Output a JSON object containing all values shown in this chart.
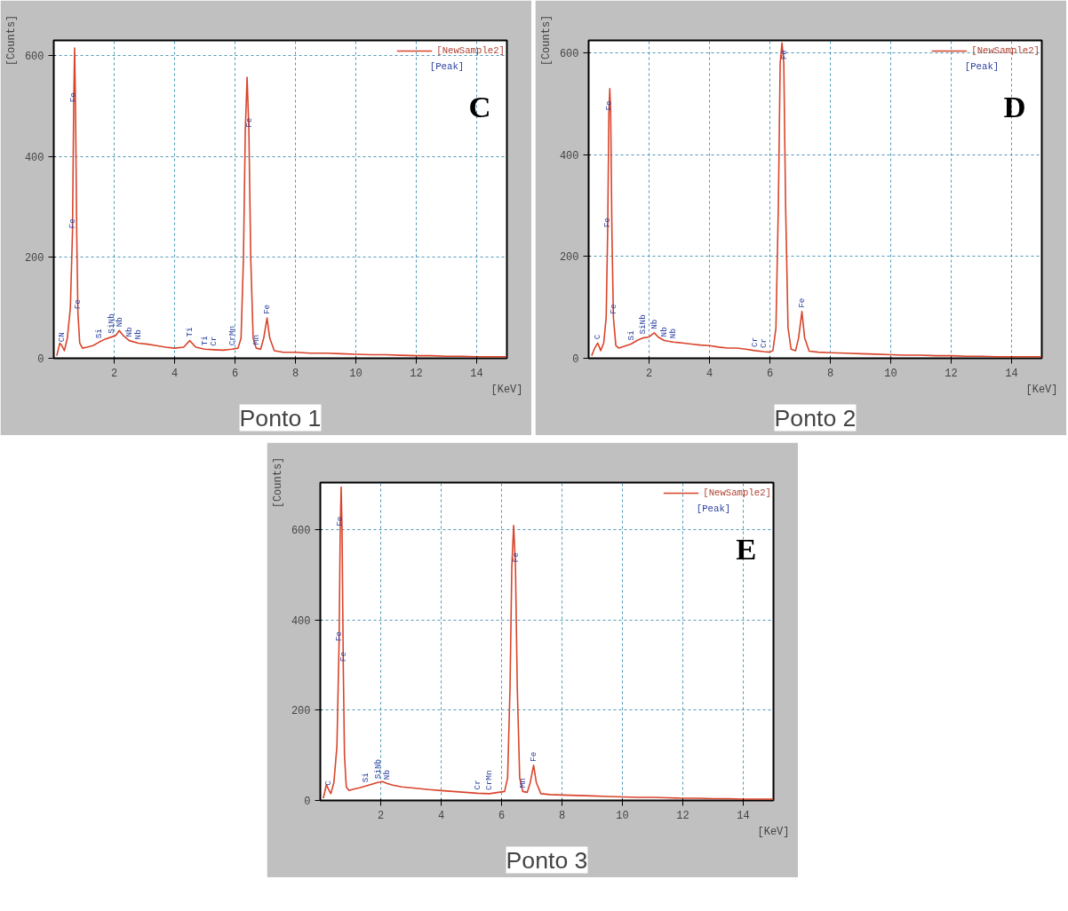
{
  "chart_data": [
    {
      "type": "line",
      "title": "Ponto 1",
      "xlabel": "[KeV]",
      "ylabel": "[Counts]",
      "xlim": [
        0,
        15
      ],
      "ylim": [
        0,
        630
      ],
      "xticks": [
        2,
        4,
        6,
        8,
        10,
        12,
        14
      ],
      "yticks": [
        0,
        200,
        400,
        600
      ],
      "grid": true,
      "legend": "top right",
      "series": [
        {
          "name": "[NewSample2]",
          "color": "#d9442b",
          "x": [
            0.1,
            0.2,
            0.27,
            0.35,
            0.45,
            0.55,
            0.62,
            0.66,
            0.69,
            0.72,
            0.76,
            0.8,
            0.86,
            0.95,
            1.1,
            1.3,
            1.5,
            1.7,
            1.9,
            2.05,
            2.17,
            2.3,
            2.5,
            2.8,
            3.1,
            3.4,
            3.7,
            4.0,
            4.3,
            4.5,
            4.7,
            5.0,
            5.3,
            5.6,
            5.9,
            6.1,
            6.2,
            6.28,
            6.34,
            6.4,
            6.46,
            6.52,
            6.6,
            6.7,
            6.85,
            6.95,
            7.06,
            7.15,
            7.3,
            7.6,
            8.0,
            8.5,
            9.0,
            9.5,
            10.0,
            10.5,
            11.0,
            11.5,
            12.0,
            12.5,
            13.0,
            13.5,
            14.0,
            14.5,
            15.0
          ],
          "values": [
            5,
            30,
            25,
            15,
            40,
            100,
            250,
            500,
            615,
            500,
            250,
            90,
            30,
            20,
            22,
            25,
            32,
            38,
            42,
            45,
            55,
            45,
            35,
            30,
            28,
            25,
            22,
            20,
            22,
            35,
            22,
            18,
            17,
            16,
            18,
            20,
            40,
            200,
            450,
            557,
            450,
            200,
            40,
            20,
            18,
            40,
            80,
            40,
            15,
            12,
            12,
            10,
            10,
            9,
            8,
            7,
            7,
            6,
            5,
            5,
            4,
            4,
            3,
            3,
            3
          ]
        }
      ],
      "annotations": [
        "[Peak]",
        "C",
        {
          "text": "CN",
          "x": 0.27,
          "y": 25
        },
        {
          "text": "Fe",
          "x": 0.66,
          "y": 500
        },
        {
          "text": "Fe",
          "x": 0.62,
          "y": 250
        },
        {
          "text": "Fe",
          "x": 0.8,
          "y": 90
        },
        {
          "text": "Si",
          "x": 1.5,
          "y": 32
        },
        {
          "text": "SiNb",
          "x": 1.9,
          "y": 42
        },
        {
          "text": "Nb",
          "x": 2.17,
          "y": 55
        },
        {
          "text": "Nb",
          "x": 2.5,
          "y": 35
        },
        {
          "text": "Nb",
          "x": 2.8,
          "y": 30
        },
        {
          "text": "Ti",
          "x": 4.5,
          "y": 35
        },
        {
          "text": "Ti",
          "x": 5.0,
          "y": 18
        },
        {
          "text": "Cr",
          "x": 5.3,
          "y": 17
        },
        {
          "text": "CrMn",
          "x": 5.9,
          "y": 18
        },
        {
          "text": "Fe",
          "x": 6.46,
          "y": 450
        },
        {
          "text": "Mn",
          "x": 6.7,
          "y": 20
        },
        {
          "text": "Fe",
          "x": 7.06,
          "y": 80
        }
      ]
    },
    {
      "type": "line",
      "title": "Ponto 2",
      "xlabel": "[KeV]",
      "ylabel": "[Counts]",
      "xlim": [
        0,
        15
      ],
      "ylim": [
        0,
        625
      ],
      "xticks": [
        2,
        4,
        6,
        8,
        10,
        12,
        14
      ],
      "yticks": [
        0,
        200,
        400,
        600
      ],
      "grid": true,
      "legend": "top right",
      "series": [
        {
          "name": "[NewSample2]",
          "color": "#d9442b",
          "x": [
            0.1,
            0.2,
            0.3,
            0.4,
            0.5,
            0.58,
            0.63,
            0.67,
            0.7,
            0.73,
            0.77,
            0.82,
            0.9,
            1.0,
            1.2,
            1.4,
            1.6,
            1.8,
            2.0,
            2.17,
            2.3,
            2.5,
            2.8,
            3.1,
            3.4,
            3.7,
            4.0,
            4.3,
            4.6,
            4.9,
            5.2,
            5.5,
            5.8,
            6.0,
            6.1,
            6.2,
            6.28,
            6.34,
            6.4,
            6.46,
            6.52,
            6.6,
            6.7,
            6.85,
            6.95,
            7.06,
            7.15,
            7.3,
            7.6,
            8.0,
            8.5,
            9.0,
            9.5,
            10.0,
            10.5,
            11.0,
            11.5,
            12.0,
            12.5,
            13.0,
            13.5,
            14.0,
            14.5,
            15.0
          ],
          "values": [
            5,
            20,
            30,
            15,
            30,
            80,
            250,
            480,
            530,
            480,
            250,
            80,
            25,
            20,
            24,
            28,
            35,
            40,
            42,
            50,
            42,
            35,
            32,
            30,
            28,
            26,
            25,
            22,
            20,
            20,
            18,
            15,
            13,
            12,
            15,
            60,
            300,
            580,
            620,
            580,
            300,
            60,
            18,
            15,
            40,
            92,
            40,
            14,
            12,
            11,
            10,
            9,
            8,
            7,
            6,
            6,
            5,
            5,
            4,
            4,
            3,
            3,
            3,
            3
          ]
        }
      ],
      "annotations": [
        "[Peak]",
        "D",
        {
          "text": "C",
          "x": 0.3,
          "y": 30
        },
        {
          "text": "Fe",
          "x": 0.67,
          "y": 480
        },
        {
          "text": "Fe",
          "x": 0.63,
          "y": 250
        },
        {
          "text": "Fe",
          "x": 0.82,
          "y": 80
        },
        {
          "text": "Si",
          "x": 1.4,
          "y": 28
        },
        {
          "text": "SiNb",
          "x": 1.8,
          "y": 40
        },
        {
          "text": "Nb",
          "x": 2.17,
          "y": 50
        },
        {
          "text": "Nb",
          "x": 2.5,
          "y": 35
        },
        {
          "text": "Nb",
          "x": 2.8,
          "y": 32
        },
        {
          "text": "Cr",
          "x": 5.5,
          "y": 15
        },
        {
          "text": "Cr",
          "x": 5.8,
          "y": 13
        },
        {
          "text": "Fe",
          "x": 6.46,
          "y": 580
        },
        {
          "text": "Fe",
          "x": 7.06,
          "y": 92
        }
      ]
    },
    {
      "type": "line",
      "title": "Ponto 3",
      "xlabel": "[KeV]",
      "ylabel": "[Counts]",
      "xlim": [
        0,
        15
      ],
      "ylim": [
        0,
        705
      ],
      "xticks": [
        2,
        4,
        6,
        8,
        10,
        12,
        14
      ],
      "yticks": [
        0,
        200,
        400,
        600
      ],
      "grid": true,
      "legend": "top right",
      "series": [
        {
          "name": "[NewSample2]",
          "color": "#d9442b",
          "x": [
            0.1,
            0.2,
            0.27,
            0.35,
            0.45,
            0.55,
            0.62,
            0.66,
            0.69,
            0.72,
            0.76,
            0.8,
            0.86,
            0.95,
            1.1,
            1.3,
            1.5,
            1.7,
            1.9,
            2.05,
            2.2,
            2.4,
            2.7,
            3.0,
            3.3,
            3.6,
            4.0,
            4.4,
            4.8,
            5.2,
            5.6,
            5.9,
            6.1,
            6.2,
            6.28,
            6.34,
            6.4,
            6.46,
            6.52,
            6.6,
            6.7,
            6.85,
            6.95,
            7.06,
            7.15,
            7.3,
            7.6,
            8.0,
            8.5,
            9.0,
            9.5,
            10.0,
            10.5,
            11.0,
            11.5,
            12.0,
            12.5,
            13.0,
            13.5,
            14.0,
            14.5,
            15.0
          ],
          "values": [
            5,
            35,
            25,
            15,
            40,
            120,
            345,
            600,
            695,
            600,
            300,
            100,
            30,
            22,
            25,
            28,
            32,
            36,
            40,
            42,
            38,
            34,
            30,
            28,
            26,
            24,
            22,
            20,
            18,
            16,
            15,
            18,
            20,
            50,
            250,
            520,
            610,
            520,
            250,
            50,
            20,
            18,
            40,
            78,
            40,
            15,
            13,
            12,
            11,
            10,
            9,
            8,
            7,
            7,
            6,
            5,
            5,
            4,
            4,
            3,
            3,
            3
          ]
        }
      ],
      "annotations": [
        "[Peak]",
        "E",
        {
          "text": "C",
          "x": 0.27,
          "y": 25
        },
        {
          "text": "Fe",
          "x": 0.66,
          "y": 600
        },
        {
          "text": "Fe",
          "x": 0.62,
          "y": 345
        },
        {
          "text": "Fe",
          "x": 0.76,
          "y": 300
        },
        {
          "text": "Si",
          "x": 1.5,
          "y": 32
        },
        {
          "text": "SiNb",
          "x": 1.9,
          "y": 40
        },
        {
          "text": "Nb",
          "x": 2.2,
          "y": 38
        },
        {
          "text": "Cr",
          "x": 5.2,
          "y": 16
        },
        {
          "text": "CrMn",
          "x": 5.6,
          "y": 15
        },
        {
          "text": "Mn",
          "x": 6.7,
          "y": 20
        },
        {
          "text": "Fe",
          "x": 6.46,
          "y": 520
        },
        {
          "text": "Fe",
          "x": 7.06,
          "y": 78
        }
      ]
    }
  ]
}
